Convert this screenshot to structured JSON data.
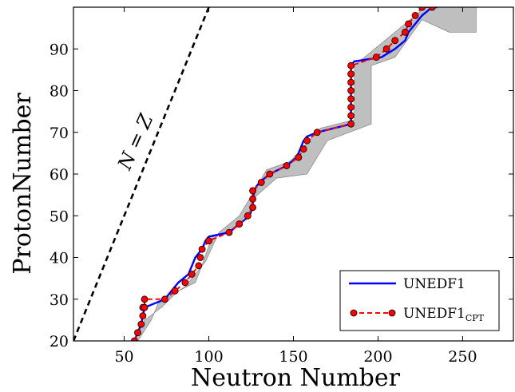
{
  "chart_data": {
    "type": "line",
    "xlabel": "Neutron Number",
    "ylabel": "ProtonNumber",
    "xlim": [
      20,
      280
    ],
    "ylim": [
      20,
      100
    ],
    "xticks": [
      50,
      100,
      150,
      200,
      250
    ],
    "yticks": [
      20,
      30,
      40,
      50,
      60,
      70,
      80,
      90
    ],
    "grid": false,
    "legend_position": "lower right",
    "annotation": {
      "text": "N = Z"
    },
    "reference_line": {
      "name": "N = Z",
      "x": [
        20,
        100
      ],
      "y": [
        20,
        100
      ],
      "color": "#000000",
      "style": "dashed"
    },
    "band": {
      "color": "#a9a9a9",
      "upper": [
        [
          40,
          20
        ],
        [
          58,
          20
        ],
        [
          66,
          25
        ],
        [
          70,
          29
        ],
        [
          86,
          33
        ],
        [
          98,
          39
        ],
        [
          106,
          46
        ],
        [
          118,
          50
        ],
        [
          130,
          58
        ],
        [
          134,
          61
        ],
        [
          148,
          63
        ],
        [
          166,
          71
        ],
        [
          186,
          73
        ],
        [
          186,
          86
        ],
        [
          222,
          98
        ],
        [
          228,
          100
        ],
        [
          258,
          100
        ]
      ],
      "lower": [
        [
          258,
          94
        ],
        [
          242,
          94
        ],
        [
          226,
          97
        ],
        [
          210,
          88
        ],
        [
          196,
          86
        ],
        [
          196,
          72
        ],
        [
          170,
          68
        ],
        [
          158,
          60
        ],
        [
          140,
          59
        ],
        [
          126,
          54
        ],
        [
          124,
          51
        ],
        [
          112,
          46
        ],
        [
          102,
          45
        ],
        [
          94,
          36
        ],
        [
          92,
          34
        ],
        [
          82,
          32
        ],
        [
          72,
          28
        ],
        [
          62,
          25
        ],
        [
          56,
          20
        ],
        [
          40,
          20
        ]
      ]
    },
    "series": [
      {
        "name": "UNEDF1",
        "color": "#0000ff",
        "style": "solid",
        "marker": "none",
        "x": [
          56,
          58,
          60,
          62,
          74,
          78,
          82,
          88,
          92,
          96,
          98,
          100,
          112,
          118,
          124,
          126,
          126,
          127,
          128,
          130,
          136,
          146,
          152,
          154,
          156,
          158,
          164,
          184,
          184,
          184,
          184,
          184,
          184,
          184,
          184,
          186,
          202,
          210,
          216,
          218,
          222,
          226,
          232,
          235
        ],
        "y": [
          20,
          22,
          24,
          28,
          30,
          32,
          34,
          36,
          40,
          42,
          44,
          45,
          46,
          48,
          50,
          52,
          54,
          56,
          57,
          58,
          60,
          62,
          64,
          66,
          68,
          69,
          70,
          72,
          74,
          76,
          78,
          80,
          82,
          84,
          86,
          87,
          88,
          90,
          92,
          94,
          96,
          98,
          100,
          100
        ]
      },
      {
        "name": "UNEDF1",
        "subscript": "CPT",
        "color": "#ff0000",
        "style": "dashed",
        "marker": "circle",
        "marker_color": "#ff0000",
        "x": [
          56,
          58,
          60,
          61,
          61,
          62,
          62,
          74,
          80,
          86,
          90,
          94,
          95,
          96,
          100,
          112,
          118,
          123,
          126,
          126,
          126,
          126,
          131,
          136,
          146,
          153,
          156,
          158,
          164,
          184,
          184,
          184,
          184,
          184,
          184,
          184,
          184,
          199,
          205,
          210,
          216,
          218,
          222,
          226,
          232
        ],
        "y": [
          20,
          22,
          24,
          26,
          28,
          28,
          30,
          30,
          32,
          34,
          36,
          38,
          40,
          42,
          44,
          46,
          48,
          50,
          52,
          54,
          56,
          56,
          58,
          60,
          62,
          64,
          66,
          68,
          70,
          72,
          74,
          76,
          78,
          80,
          82,
          84,
          86,
          88,
          90,
          92,
          94,
          96,
          98,
          100,
          100
        ]
      }
    ]
  }
}
